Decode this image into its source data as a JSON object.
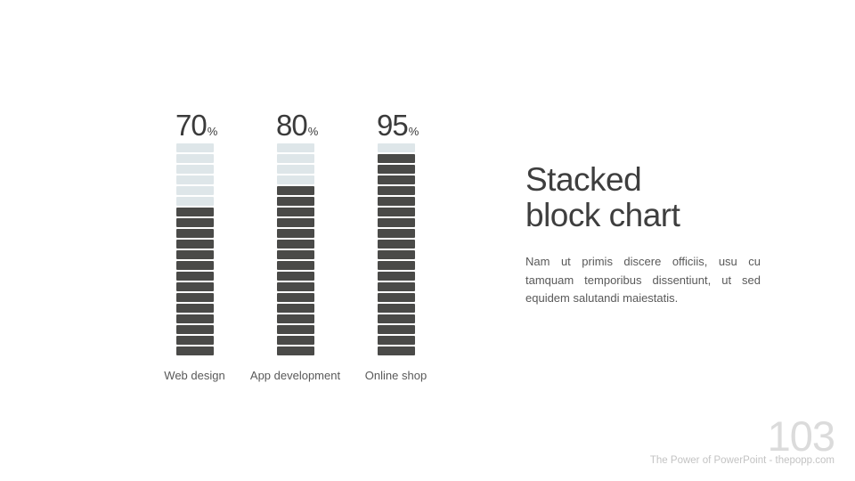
{
  "slide": {
    "title_lines": [
      "Stacked",
      "block chart"
    ],
    "body_text": "Nam ut primis discere officiis, usu cu tamquam temporibus dissentiunt, ut sed equidem salutandi maiestatis.",
    "page_number": "103",
    "footer_text": "The Power of PowerPoint - thepopp.com"
  },
  "chart_data": {
    "type": "bar",
    "subtype": "stacked-block",
    "title": "Stacked block chart",
    "categories": [
      "Web design",
      "App development",
      "Online shop"
    ],
    "values": [
      70,
      80,
      95
    ],
    "value_suffix": "%",
    "ylim": [
      0,
      100
    ],
    "blocks_per_bar": 20,
    "percent_per_block": 5,
    "filled_blocks": [
      14,
      16,
      19
    ],
    "empty_blocks": [
      6,
      4,
      1
    ],
    "grid": false,
    "legend": false,
    "colors": {
      "filled": "#4a4a48",
      "empty": "#dee6e9",
      "value_label": "#3b3b3b",
      "category_label": "#595959"
    }
  },
  "colors": {
    "background": "#ffffff",
    "title": "#3e3e3e",
    "body": "#595959",
    "page_number": "#dbdbdb",
    "footer": "#c3c3c3"
  }
}
